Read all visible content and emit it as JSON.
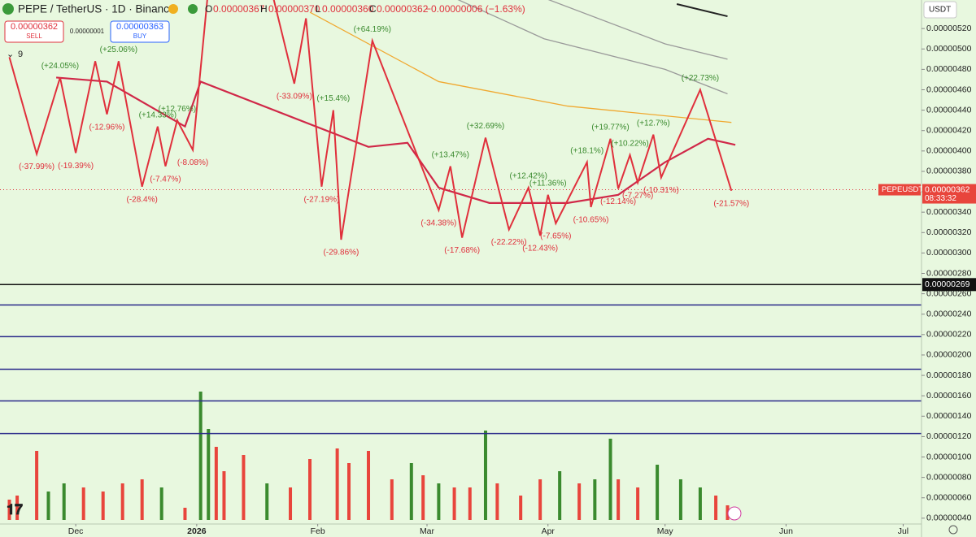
{
  "header": {
    "symbol": "PEPE / TetherUS · 1D · Binance",
    "ohlc": [
      "O",
      "0.00000367",
      "H",
      "0.00000370",
      "L",
      "0.00000360",
      "C",
      "0.00000362",
      "−0.00000006 (−1.63%)"
    ],
    "sell_price": "0.00000362",
    "sell": "SELL",
    "spread": "0.00000001",
    "buy_price": "0.00000363",
    "buy": "BUY",
    "indicator_count": "9",
    "currency": "USDT"
  },
  "chart_data": {
    "type": "zigzag-price",
    "xlim": [
      -19.4,
      216.7
    ],
    "ylim": [
      3.43e-07,
      5.48e-06
    ],
    "xticks": [
      {
        "value": 0,
        "label": "Dec"
      },
      {
        "value": 31,
        "label": "2026"
      },
      {
        "value": 62,
        "label": "Feb"
      },
      {
        "value": 90,
        "label": "Mar"
      },
      {
        "value": 121,
        "label": "Apr"
      },
      {
        "value": 151,
        "label": "May"
      },
      {
        "value": 182,
        "label": "Jun"
      },
      {
        "value": 212,
        "label": "Jul"
      }
    ],
    "yticks": [
      {
        "value": 5.2e-06,
        "label": "0.00000520"
      },
      {
        "value": 5e-06,
        "label": "0.00000500"
      },
      {
        "value": 4.8e-06,
        "label": "0.00000480"
      },
      {
        "value": 4.6e-06,
        "label": "0.00000460"
      },
      {
        "value": 4.4e-06,
        "label": "0.00000440"
      },
      {
        "value": 4.2e-06,
        "label": "0.00000420"
      },
      {
        "value": 4e-06,
        "label": "0.00000400"
      },
      {
        "value": 3.8e-06,
        "label": "0.00000380"
      },
      {
        "value": 3.6e-06,
        "label": "0.00000360"
      },
      {
        "value": 3.4e-06,
        "label": "0.00000340"
      },
      {
        "value": 3.2e-06,
        "label": "0.00000320"
      },
      {
        "value": 3e-06,
        "label": "0.00000300"
      },
      {
        "value": 2.8e-06,
        "label": "0.00000280"
      },
      {
        "value": 2.6e-06,
        "label": "0.00000260"
      },
      {
        "value": 2.4e-06,
        "label": "0.00000240"
      },
      {
        "value": 2.2e-06,
        "label": "0.00000220"
      },
      {
        "value": 2e-06,
        "label": "0.00000200"
      },
      {
        "value": 1.8e-06,
        "label": "0.00000180"
      },
      {
        "value": 1.6e-06,
        "label": "0.00000160"
      },
      {
        "value": 1.4e-06,
        "label": "0.00000140"
      },
      {
        "value": 1.2e-06,
        "label": "0.00000120"
      },
      {
        "value": 1e-06,
        "label": "0.00000100"
      },
      {
        "value": 8e-07,
        "label": "0.00000080"
      },
      {
        "value": 6e-07,
        "label": "0.00000060"
      },
      {
        "value": 4e-07,
        "label": "0.00000040"
      }
    ],
    "zigzag": {
      "color": "#e0303c",
      "x": [
        -17,
        -10,
        -4,
        0,
        5,
        8,
        11,
        17,
        21,
        23,
        26,
        30,
        34,
        50,
        56,
        59,
        63,
        66,
        68,
        76,
        93,
        96,
        99,
        105,
        111,
        116,
        119,
        121,
        123,
        131,
        132,
        137,
        139,
        142,
        144,
        148,
        150,
        160,
        168
      ],
      "values": [
        4.92e-06,
        3.97e-06,
        4.72e-06,
        3.98e-06,
        4.88e-06,
        4.36e-06,
        4.88e-06,
        3.65e-06,
        4.24e-06,
        3.85e-06,
        4.3e-06,
        4.01e-06,
        5.6e-06,
        5.6e-06,
        4.66e-06,
        5.3e-06,
        3.65e-06,
        4.4e-06,
        3.13e-06,
        5.08e-06,
        3.42e-06,
        3.85e-06,
        3.15e-06,
        4.13e-06,
        3.23e-06,
        3.64e-06,
        3.17e-06,
        3.57e-06,
        3.29e-06,
        3.89e-06,
        3.45e-06,
        4.12e-06,
        3.63e-06,
        3.96e-06,
        3.69e-06,
        4.16e-06,
        3.74e-06,
        4.6e-06,
        3.61e-06
      ],
      "changes": [
        null,
        "(-37.99%)",
        "(+24.05%)",
        "(-19.39%)",
        null,
        "(-12.96%)",
        "(+25.06%)",
        "(-28.4%)",
        "(+14.33%)",
        "(-7.47%)",
        "(+12.76%)",
        "(-8.08%)",
        null,
        null,
        "(-33.09%)",
        null,
        "(-27.19%)",
        "(+15.4%)",
        "(-29.86%)",
        "(+64.19%)",
        "(-34.38%)",
        "(+13.47%)",
        "(-17.68%)",
        "(+32.69%)",
        "(-22.22%)",
        "(+12.42%)",
        "(-12.43%)",
        "(+11.36%)",
        "(-7.65%)",
        "(+18.1%)",
        "(-10.65%)",
        "(+19.77%)",
        "(-12.14%)",
        "(+10.22%)",
        "(-7.27%)",
        "(+12.7%)",
        "(-10.31%)",
        "(+22.73%)",
        "(-21.57%)"
      ]
    },
    "series": [
      {
        "color": "#222222",
        "width": 2,
        "x": [
          154,
          167
        ],
        "values": [
          5.44e-06,
          5.32e-06
        ]
      },
      {
        "color": "#9a9a9a",
        "width": 1.3,
        "x": [
          120,
          151,
          167
        ],
        "values": [
          5.5e-06,
          5.05e-06,
          4.9e-06
        ]
      },
      {
        "color": "#9a9a9a",
        "width": 1.3,
        "x": [
          97,
          120,
          151,
          167
        ],
        "values": [
          5.5e-06,
          5.1e-06,
          4.8e-06,
          4.56e-06
        ]
      },
      {
        "color": "#f0a830",
        "width": 1.3,
        "x": [
          60,
          93,
          126,
          168
        ],
        "values": [
          5.36e-06,
          4.68e-06,
          4.44e-06,
          4.28e-06
        ]
      },
      {
        "color": "#d02848",
        "width": 2.2,
        "x": [
          -5,
          8,
          28,
          32,
          75,
          85,
          93,
          106,
          126,
          139,
          151,
          162,
          169
        ],
        "values": [
          4.72e-06,
          4.68e-06,
          4.24e-06,
          4.68e-06,
          4.04e-06,
          4.08e-06,
          3.64e-06,
          3.49e-06,
          3.49e-06,
          3.57e-06,
          3.89e-06,
          4.12e-06,
          4.06e-06
        ]
      }
    ],
    "levels": {
      "color": "#2a2a8a",
      "values": [
        2.49e-06,
        2.18e-06,
        1.86e-06,
        1.55e-06,
        1.23e-06
      ]
    },
    "marked_level": {
      "value": 2.69e-06,
      "label": "0.00000269"
    },
    "last_price": {
      "value": 3.62e-06,
      "label": "0.00000362",
      "symbol": "PEPEUSDT",
      "countdown": "08:33:32"
    },
    "volume": {
      "up_color": "#3a8a2e",
      "down_color": "#e8453c",
      "bars": [
        [
          -17,
          25,
          "down"
        ],
        [
          -15,
          30,
          "down"
        ],
        [
          -10,
          85,
          "down"
        ],
        [
          -7,
          35,
          "up"
        ],
        [
          -3,
          45,
          "up"
        ],
        [
          2,
          40,
          "down"
        ],
        [
          7,
          35,
          "down"
        ],
        [
          12,
          45,
          "down"
        ],
        [
          17,
          50,
          "down"
        ],
        [
          22,
          40,
          "up"
        ],
        [
          28,
          15,
          "down"
        ],
        [
          32,
          158,
          "up"
        ],
        [
          34,
          112,
          "up"
        ],
        [
          36,
          90,
          "down"
        ],
        [
          38,
          60,
          "down"
        ],
        [
          43,
          80,
          "down"
        ],
        [
          49,
          45,
          "up"
        ],
        [
          55,
          40,
          "down"
        ],
        [
          60,
          75,
          "down"
        ],
        [
          67,
          88,
          "down"
        ],
        [
          70,
          70,
          "down"
        ],
        [
          75,
          85,
          "down"
        ],
        [
          81,
          50,
          "down"
        ],
        [
          86,
          70,
          "up"
        ],
        [
          89,
          55,
          "down"
        ],
        [
          93,
          45,
          "up"
        ],
        [
          97,
          40,
          "down"
        ],
        [
          101,
          40,
          "down"
        ],
        [
          105,
          110,
          "up"
        ],
        [
          108,
          45,
          "down"
        ],
        [
          114,
          30,
          "down"
        ],
        [
          119,
          50,
          "down"
        ],
        [
          124,
          60,
          "up"
        ],
        [
          129,
          45,
          "down"
        ],
        [
          133,
          50,
          "up"
        ],
        [
          137,
          100,
          "up"
        ],
        [
          139,
          50,
          "down"
        ],
        [
          144,
          40,
          "down"
        ],
        [
          149,
          68,
          "up"
        ],
        [
          155,
          50,
          "up"
        ],
        [
          160,
          40,
          "up"
        ],
        [
          164,
          30,
          "down"
        ],
        [
          167,
          18,
          "down"
        ]
      ]
    }
  }
}
